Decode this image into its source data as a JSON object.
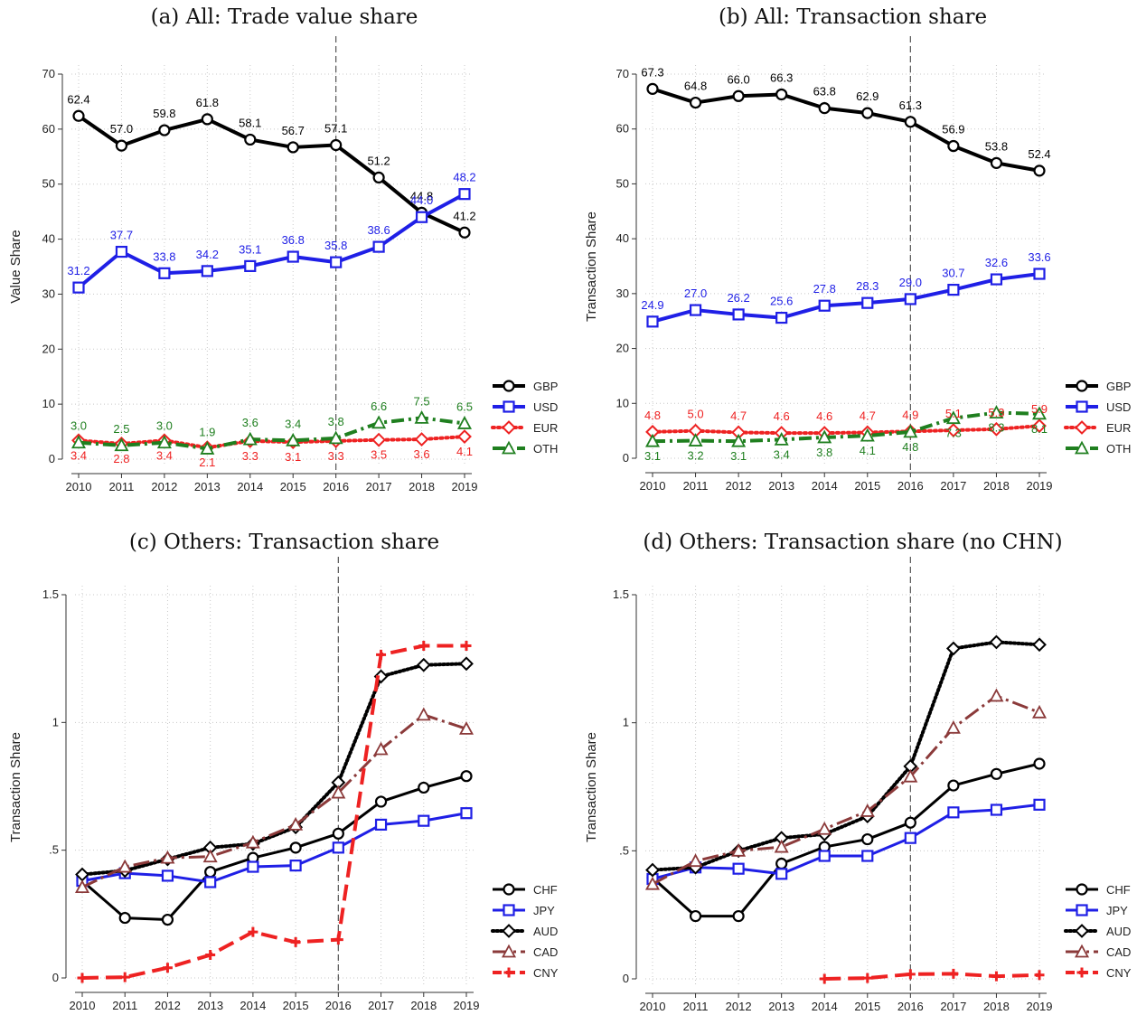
{
  "colors": {
    "GBP": "#000000",
    "USD": "#1f1fe6",
    "EUR": "#ee2222",
    "OTH": "#1f7f1f",
    "CHF": "#000000",
    "JPY": "#1f1fe6",
    "AUD": "#000000",
    "CAD": "#8b3a3a",
    "CNY": "#ee2222"
  },
  "chart_data": [
    {
      "type": "line",
      "title": "(a) All: Trade value share",
      "ylabel": "Value Share",
      "ylim": [
        0,
        70
      ],
      "yticks": [
        0,
        10,
        20,
        30,
        40,
        50,
        60,
        70
      ],
      "ytick_labels": [
        "0",
        "10",
        "20",
        "30",
        "40",
        "50",
        "60",
        "70"
      ],
      "x": [
        2010,
        2011,
        2012,
        2013,
        2014,
        2015,
        2016,
        2017,
        2018,
        2019
      ],
      "vline_x": 2016,
      "grid": true,
      "legend_position": "right",
      "series": [
        {
          "name": "GBP",
          "values": [
            62.4,
            57.0,
            59.8,
            61.8,
            58.1,
            56.7,
            57.1,
            51.2,
            44.8,
            41.2
          ],
          "labels": [
            "62.4",
            "57.0",
            "59.8",
            "61.8",
            "58.1",
            "56.7",
            "57.1",
            "51.2",
            "44.8",
            "41.2"
          ]
        },
        {
          "name": "USD",
          "values": [
            31.2,
            37.7,
            33.8,
            34.2,
            35.1,
            36.8,
            35.8,
            38.6,
            44.0,
            48.2
          ],
          "labels": [
            "31.2",
            "37.7",
            "33.8",
            "34.2",
            "35.1",
            "36.8",
            "35.8",
            "38.6",
            "44.0",
            "48.2"
          ]
        },
        {
          "name": "EUR",
          "values": [
            3.4,
            2.8,
            3.4,
            2.1,
            3.3,
            3.1,
            3.3,
            3.5,
            3.6,
            4.1
          ],
          "labels": [
            "3.4",
            "2.8",
            "3.4",
            "2.1",
            "3.3",
            "3.1",
            "3.3",
            "3.5",
            "3.6",
            "4.1"
          ]
        },
        {
          "name": "OTH",
          "values": [
            3.0,
            2.5,
            3.0,
            1.9,
            3.6,
            3.4,
            3.8,
            6.6,
            7.5,
            6.5
          ],
          "labels": [
            "3.0",
            "2.5",
            "3.0",
            "1.9",
            "3.6",
            "3.4",
            "3.8",
            "6.6",
            "7.5",
            "6.5"
          ]
        }
      ]
    },
    {
      "type": "line",
      "title": "(b) All: Transaction share",
      "ylabel": "Transaction Share",
      "ylim": [
        0,
        70
      ],
      "yticks": [
        0,
        10,
        20,
        30,
        40,
        50,
        60,
        70
      ],
      "ytick_labels": [
        "0",
        "10",
        "20",
        "30",
        "40",
        "50",
        "60",
        "70"
      ],
      "x": [
        2010,
        2011,
        2012,
        2013,
        2014,
        2015,
        2016,
        2017,
        2018,
        2019
      ],
      "vline_x": 2016,
      "grid": true,
      "legend_position": "right",
      "series": [
        {
          "name": "GBP",
          "values": [
            67.3,
            64.8,
            66.0,
            66.3,
            63.8,
            62.9,
            61.3,
            56.9,
            53.8,
            52.4
          ],
          "labels": [
            "67.3",
            "64.8",
            "66.0",
            "66.3",
            "63.8",
            "62.9",
            "61.3",
            "56.9",
            "53.8",
            "52.4"
          ]
        },
        {
          "name": "USD",
          "values": [
            24.9,
            27.0,
            26.2,
            25.6,
            27.8,
            28.3,
            29.0,
            30.7,
            32.6,
            33.6
          ],
          "labels": [
            "24.9",
            "27.0",
            "26.2",
            "25.6",
            "27.8",
            "28.3",
            "29.0",
            "30.7",
            "32.6",
            "33.6"
          ]
        },
        {
          "name": "EUR",
          "values": [
            4.8,
            5.0,
            4.7,
            4.6,
            4.6,
            4.7,
            4.9,
            5.1,
            5.3,
            5.9
          ],
          "labels": [
            "4.8",
            "5.0",
            "4.7",
            "4.6",
            "4.6",
            "4.7",
            "4.9",
            "5.1",
            "5.3",
            "5.9"
          ]
        },
        {
          "name": "OTH",
          "values": [
            3.1,
            3.2,
            3.1,
            3.4,
            3.8,
            4.1,
            4.8,
            7.3,
            8.3,
            8.1
          ],
          "labels": [
            "3.1",
            "3.2",
            "3.1",
            "3.4",
            "3.8",
            "4.1",
            "4.8",
            "7.3",
            "8.3",
            "8.1"
          ]
        }
      ]
    },
    {
      "type": "line",
      "title": "(c) Others: Transaction share",
      "ylabel": "Transaction Share",
      "ylim": [
        0,
        1.5
      ],
      "yticks": [
        0,
        0.5,
        1,
        1.5
      ],
      "ytick_labels": [
        "0",
        ".5",
        "1",
        "1.5"
      ],
      "x": [
        2010,
        2011,
        2012,
        2013,
        2014,
        2015,
        2016,
        2017,
        2018,
        2019
      ],
      "vline_x": 2016,
      "grid": true,
      "legend_position": "right",
      "series": [
        {
          "name": "CHF",
          "values": [
            0.38,
            0.235,
            0.228,
            0.415,
            0.47,
            0.51,
            0.565,
            0.69,
            0.745,
            0.79
          ]
        },
        {
          "name": "JPY",
          "values": [
            0.38,
            0.41,
            0.4,
            0.375,
            0.435,
            0.44,
            0.51,
            0.6,
            0.615,
            0.645
          ]
        },
        {
          "name": "AUD",
          "values": [
            0.405,
            0.42,
            0.465,
            0.51,
            0.525,
            0.59,
            0.765,
            1.18,
            1.225,
            1.23
          ]
        },
        {
          "name": "CAD",
          "values": [
            0.355,
            0.435,
            0.47,
            0.475,
            0.53,
            0.6,
            0.725,
            0.895,
            1.03,
            0.975
          ]
        },
        {
          "name": "CNY",
          "values": [
            0.0,
            0.003,
            0.04,
            0.09,
            0.18,
            0.14,
            0.15,
            1.265,
            1.3,
            1.3
          ]
        }
      ]
    },
    {
      "type": "line",
      "title": "(d) Others: Transaction share (no CHN)",
      "ylabel": "Transaction Share",
      "ylim": [
        0,
        1.5
      ],
      "yticks": [
        0,
        0.5,
        1,
        1.5
      ],
      "ytick_labels": [
        "0",
        ".5",
        "1",
        "1.5"
      ],
      "x": [
        2010,
        2011,
        2012,
        2013,
        2014,
        2015,
        2016,
        2017,
        2018,
        2019
      ],
      "vline_x": 2016,
      "grid": true,
      "legend_position": "right",
      "series": [
        {
          "name": "CHF",
          "values": [
            0.395,
            0.245,
            0.245,
            0.45,
            0.515,
            0.545,
            0.61,
            0.755,
            0.8,
            0.84
          ]
        },
        {
          "name": "JPY",
          "values": [
            0.39,
            0.435,
            0.43,
            0.41,
            0.48,
            0.48,
            0.55,
            0.65,
            0.66,
            0.68
          ]
        },
        {
          "name": "AUD",
          "values": [
            0.425,
            0.435,
            0.5,
            0.55,
            0.565,
            0.635,
            0.83,
            1.29,
            1.315,
            1.305
          ]
        },
        {
          "name": "CAD",
          "values": [
            0.37,
            0.46,
            0.5,
            0.515,
            0.585,
            0.655,
            0.79,
            0.98,
            1.105,
            1.04
          ]
        },
        {
          "name": "CNY",
          "values": [
            null,
            null,
            null,
            null,
            0.0,
            0.003,
            0.018,
            0.02,
            0.01,
            0.015
          ]
        }
      ]
    }
  ]
}
